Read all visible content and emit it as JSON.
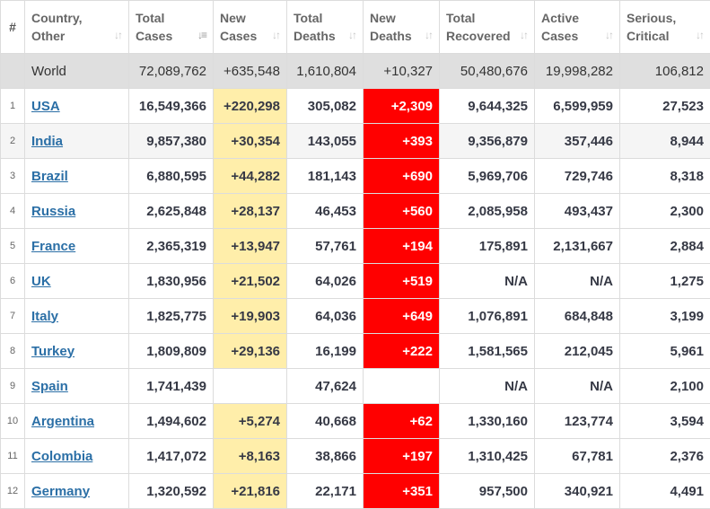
{
  "headers": {
    "index": "#",
    "country": [
      "Country,",
      "Other"
    ],
    "total_cases": [
      "Total",
      "Cases"
    ],
    "new_cases": [
      "New",
      "Cases"
    ],
    "total_deaths": [
      "Total",
      "Deaths"
    ],
    "new_deaths": [
      "New",
      "Deaths"
    ],
    "total_recovered": [
      "Total",
      "Recovered"
    ],
    "active_cases": [
      "Active",
      "Cases"
    ],
    "serious_critical": [
      "Serious,",
      "Critical"
    ]
  },
  "icons": {
    "sort": "sort-arrows-icon",
    "sort_active": "sort-descending-icon"
  },
  "colors": {
    "new_cases_highlight": "#ffeeaa",
    "new_deaths_highlight": "#ff0000",
    "link": "#2b6fa6",
    "world_row": "#dfdfdf"
  },
  "world": {
    "country": "World",
    "total_cases": "72,089,762",
    "new_cases": "+635,548",
    "total_deaths": "1,610,804",
    "new_deaths": "+10,327",
    "total_recovered": "50,480,676",
    "active_cases": "19,998,282",
    "serious_critical": "106,812"
  },
  "rows": [
    {
      "idx": "1",
      "country": "USA",
      "total_cases": "16,549,366",
      "new_cases": "+220,298",
      "total_deaths": "305,082",
      "new_deaths": "+2,309",
      "total_recovered": "9,644,325",
      "active_cases": "6,599,959",
      "serious_critical": "27,523"
    },
    {
      "idx": "2",
      "country": "India",
      "total_cases": "9,857,380",
      "new_cases": "+30,354",
      "total_deaths": "143,055",
      "new_deaths": "+393",
      "total_recovered": "9,356,879",
      "active_cases": "357,446",
      "serious_critical": "8,944"
    },
    {
      "idx": "3",
      "country": "Brazil",
      "total_cases": "6,880,595",
      "new_cases": "+44,282",
      "total_deaths": "181,143",
      "new_deaths": "+690",
      "total_recovered": "5,969,706",
      "active_cases": "729,746",
      "serious_critical": "8,318"
    },
    {
      "idx": "4",
      "country": "Russia",
      "total_cases": "2,625,848",
      "new_cases": "+28,137",
      "total_deaths": "46,453",
      "new_deaths": "+560",
      "total_recovered": "2,085,958",
      "active_cases": "493,437",
      "serious_critical": "2,300"
    },
    {
      "idx": "5",
      "country": "France",
      "total_cases": "2,365,319",
      "new_cases": "+13,947",
      "total_deaths": "57,761",
      "new_deaths": "+194",
      "total_recovered": "175,891",
      "active_cases": "2,131,667",
      "serious_critical": "2,884"
    },
    {
      "idx": "6",
      "country": "UK",
      "total_cases": "1,830,956",
      "new_cases": "+21,502",
      "total_deaths": "64,026",
      "new_deaths": "+519",
      "total_recovered": "N/A",
      "active_cases": "N/A",
      "serious_critical": "1,275"
    },
    {
      "idx": "7",
      "country": "Italy",
      "total_cases": "1,825,775",
      "new_cases": "+19,903",
      "total_deaths": "64,036",
      "new_deaths": "+649",
      "total_recovered": "1,076,891",
      "active_cases": "684,848",
      "serious_critical": "3,199"
    },
    {
      "idx": "8",
      "country": "Turkey",
      "total_cases": "1,809,809",
      "new_cases": "+29,136",
      "total_deaths": "16,199",
      "new_deaths": "+222",
      "total_recovered": "1,581,565",
      "active_cases": "212,045",
      "serious_critical": "5,961"
    },
    {
      "idx": "9",
      "country": "Spain",
      "total_cases": "1,741,439",
      "new_cases": "",
      "total_deaths": "47,624",
      "new_deaths": "",
      "total_recovered": "N/A",
      "active_cases": "N/A",
      "serious_critical": "2,100"
    },
    {
      "idx": "10",
      "country": "Argentina",
      "total_cases": "1,494,602",
      "new_cases": "+5,274",
      "total_deaths": "40,668",
      "new_deaths": "+62",
      "total_recovered": "1,330,160",
      "active_cases": "123,774",
      "serious_critical": "3,594"
    },
    {
      "idx": "11",
      "country": "Colombia",
      "total_cases": "1,417,072",
      "new_cases": "+8,163",
      "total_deaths": "38,866",
      "new_deaths": "+197",
      "total_recovered": "1,310,425",
      "active_cases": "67,781",
      "serious_critical": "2,376"
    },
    {
      "idx": "12",
      "country": "Germany",
      "total_cases": "1,320,592",
      "new_cases": "+21,816",
      "total_deaths": "22,171",
      "new_deaths": "+351",
      "total_recovered": "957,500",
      "active_cases": "340,921",
      "serious_critical": "4,491"
    }
  ]
}
